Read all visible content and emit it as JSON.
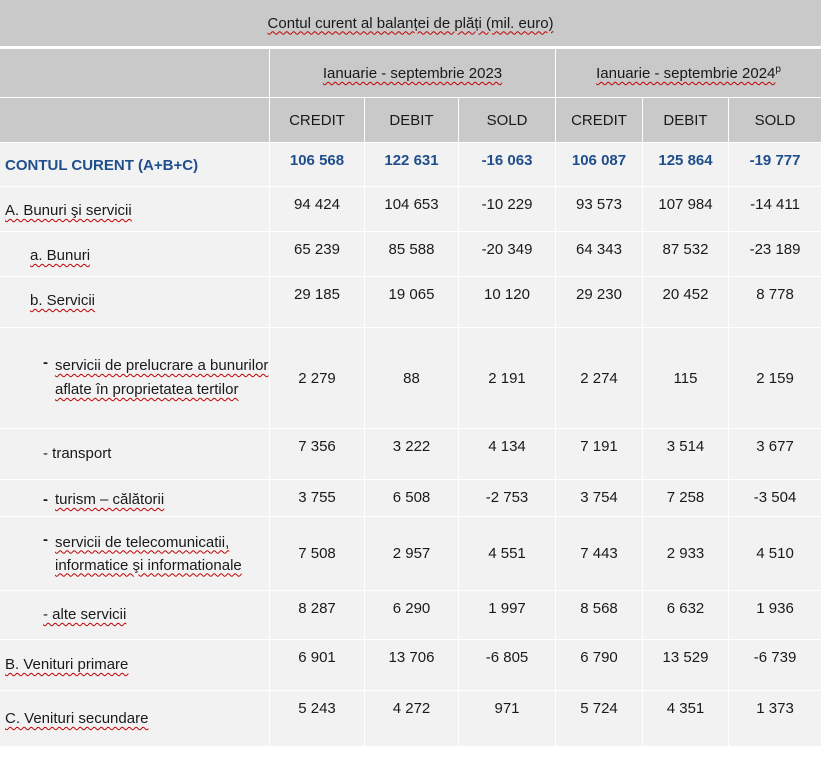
{
  "title": "Contul curent al balanței de plăți (mil. euro)",
  "periods": [
    {
      "label": "Ianuarie - septembrie 2023",
      "sup": ""
    },
    {
      "label": "Ianuarie - septembrie 2024",
      "sup": "p"
    }
  ],
  "columns": [
    "CREDIT",
    "DEBIT",
    "SOLD",
    "CREDIT",
    "DEBIT",
    "SOLD"
  ],
  "rows": [
    {
      "label": "CONTUL CURENT (A+B+C)",
      "values": [
        "106 568",
        "122 631",
        "-16 063",
        "106 087",
        "125 864",
        "-19 777"
      ]
    },
    {
      "label": "A. Bunuri şi servicii",
      "values": [
        "94 424",
        "104 653",
        "-10 229",
        "93 573",
        "107 984",
        "-14 411"
      ]
    },
    {
      "label": "a. Bunuri",
      "values": [
        "65 239",
        "85 588",
        "-20 349",
        "64 343",
        "87 532",
        "-23 189"
      ]
    },
    {
      "label": "b. Servicii",
      "values": [
        "29 185",
        "19 065",
        "10 120",
        "29 230",
        "20 452",
        "8 778"
      ]
    },
    {
      "label": "servicii de prelucrare a bunurilor aflate în proprietatea tertilor",
      "values": [
        "2 279",
        "88",
        "2 191",
        "2 274",
        "115",
        "2 159"
      ]
    },
    {
      "label": "- transport",
      "values": [
        "7 356",
        "3 222",
        "4 134",
        "7 191",
        "3 514",
        "3 677"
      ]
    },
    {
      "label": "turism – călătorii",
      "values": [
        "3 755",
        "6 508",
        "-2 753",
        "3 754",
        "7 258",
        "-3 504"
      ]
    },
    {
      "label": "servicii de telecomunicatii, informatice şi informationale",
      "values": [
        "7 508",
        "2 957",
        "4 551",
        "7 443",
        "2 933",
        "4 510"
      ]
    },
    {
      "label": "- alte servicii",
      "values": [
        "8 287",
        "6 290",
        "1 997",
        "8 568",
        "6 632",
        "1 936"
      ]
    },
    {
      "label": "B. Venituri primare",
      "values": [
        "6 901",
        "13 706",
        "-6 805",
        "6 790",
        "13 529",
        "-6 739"
      ]
    },
    {
      "label": "C. Venituri secundare",
      "values": [
        "5 243",
        "4 272",
        "971",
        "5 724",
        "4 351",
        "1 373"
      ]
    }
  ],
  "dash": "-"
}
